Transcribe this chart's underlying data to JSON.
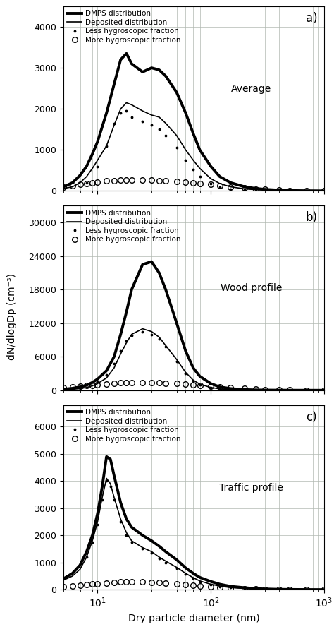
{
  "xlabel": "Dry particle diameter (nm)",
  "ylabel": "dN/dlogDp (cm⁻³)",
  "xmin": 5,
  "xmax": 1000,
  "panels": [
    {
      "label": "a)",
      "profile": "Average",
      "ymax": 4500,
      "yticks": [
        0,
        1000,
        2000,
        3000,
        4000
      ],
      "dmps": {
        "x": [
          5,
          6,
          7,
          8,
          9,
          10,
          12,
          14,
          16,
          18,
          20,
          25,
          30,
          35,
          40,
          50,
          60,
          70,
          80,
          100,
          120,
          150,
          200,
          250,
          300,
          400,
          500,
          700,
          1000
        ],
        "y": [
          100,
          200,
          380,
          600,
          900,
          1200,
          1900,
          2600,
          3200,
          3350,
          3100,
          2900,
          3000,
          2950,
          2800,
          2400,
          1900,
          1400,
          1000,
          600,
          350,
          200,
          100,
          60,
          40,
          20,
          10,
          5,
          2
        ]
      },
      "deposited": {
        "x": [
          5,
          6,
          7,
          8,
          9,
          10,
          12,
          14,
          16,
          18,
          20,
          25,
          30,
          35,
          40,
          50,
          60,
          70,
          80,
          100,
          120,
          150,
          200,
          250,
          300,
          400,
          500,
          700,
          1000
        ],
        "y": [
          60,
          100,
          200,
          350,
          550,
          750,
          1100,
          1600,
          2000,
          2150,
          2100,
          1950,
          1850,
          1800,
          1650,
          1350,
          1000,
          750,
          550,
          300,
          180,
          100,
          50,
          30,
          20,
          10,
          5,
          3,
          1
        ]
      },
      "less_hygro": {
        "x": [
          8,
          10,
          12,
          14,
          16,
          18,
          20,
          25,
          30,
          35,
          40,
          50,
          60,
          70,
          80,
          100,
          120,
          150,
          200,
          250,
          300,
          400
        ],
        "y": [
          200,
          600,
          1100,
          1650,
          1900,
          1950,
          1800,
          1700,
          1600,
          1500,
          1350,
          1050,
          750,
          520,
          350,
          180,
          90,
          50,
          25,
          12,
          8,
          3
        ]
      },
      "more_hygro": {
        "x": [
          5,
          6,
          7,
          8,
          9,
          10,
          12,
          14,
          16,
          18,
          20,
          25,
          30,
          35,
          40,
          50,
          60,
          70,
          80,
          100,
          120,
          150,
          200,
          250,
          300,
          400,
          500,
          700,
          1000
        ],
        "y": [
          100,
          130,
          160,
          180,
          200,
          220,
          240,
          250,
          260,
          270,
          270,
          270,
          260,
          250,
          240,
          230,
          220,
          200,
          180,
          160,
          130,
          100,
          70,
          50,
          35,
          20,
          12,
          6,
          3
        ]
      }
    },
    {
      "label": "b)",
      "profile": "Wood profile",
      "ymax": 33000,
      "yticks": [
        0,
        6000,
        12000,
        18000,
        24000,
        30000
      ],
      "dmps": {
        "x": [
          5,
          6,
          7,
          8,
          9,
          10,
          12,
          14,
          16,
          18,
          20,
          25,
          30,
          35,
          40,
          50,
          60,
          70,
          80,
          100,
          120,
          150,
          200,
          250,
          300,
          400,
          500,
          700,
          1000
        ],
        "y": [
          200,
          350,
          600,
          900,
          1400,
          2000,
          3500,
          6000,
          10000,
          14000,
          18000,
          22500,
          23000,
          21000,
          18000,
          12000,
          7000,
          4000,
          2500,
          1200,
          600,
          300,
          120,
          60,
          35,
          18,
          8,
          3,
          1
        ]
      },
      "deposited": {
        "x": [
          5,
          6,
          7,
          8,
          9,
          10,
          12,
          14,
          16,
          18,
          20,
          25,
          30,
          35,
          40,
          50,
          60,
          70,
          80,
          100,
          120,
          150,
          200,
          250,
          300,
          400,
          500,
          700,
          1000
        ],
        "y": [
          100,
          180,
          300,
          500,
          800,
          1200,
          2200,
          4000,
          6500,
          8500,
          10000,
          11000,
          10500,
          9500,
          8000,
          5500,
          3200,
          1800,
          1100,
          500,
          250,
          120,
          50,
          25,
          15,
          8,
          4,
          2,
          1
        ]
      },
      "less_hygro": {
        "x": [
          10,
          12,
          14,
          16,
          18,
          20,
          25,
          30,
          35,
          40,
          50,
          60,
          70,
          80,
          100,
          120,
          150,
          200,
          250
        ],
        "y": [
          1500,
          2800,
          4800,
          7000,
          8800,
          9800,
          10500,
          10000,
          9200,
          7800,
          5200,
          3000,
          1700,
          1000,
          450,
          220,
          100,
          40,
          20
        ]
      },
      "more_hygro": {
        "x": [
          5,
          6,
          7,
          8,
          9,
          10,
          12,
          14,
          16,
          18,
          20,
          25,
          30,
          35,
          40,
          50,
          60,
          70,
          80,
          100,
          120,
          150,
          200,
          250,
          300,
          400,
          500,
          700,
          1000
        ],
        "y": [
          500,
          600,
          700,
          800,
          900,
          1000,
          1100,
          1200,
          1300,
          1350,
          1400,
          1400,
          1350,
          1300,
          1250,
          1200,
          1100,
          1000,
          900,
          750,
          600,
          450,
          300,
          200,
          140,
          80,
          50,
          25,
          12
        ]
      }
    },
    {
      "label": "c)",
      "profile": "Traffic profile",
      "ymax": 6800,
      "yticks": [
        0,
        1000,
        2000,
        3000,
        4000,
        5000,
        6000
      ],
      "dmps": {
        "x": [
          5,
          6,
          7,
          8,
          9,
          10,
          11,
          12,
          13,
          14,
          16,
          18,
          20,
          25,
          30,
          35,
          40,
          50,
          60,
          70,
          80,
          100,
          120,
          150,
          200,
          250,
          300,
          400,
          500,
          700,
          1000
        ],
        "y": [
          400,
          600,
          900,
          1400,
          2000,
          2800,
          3800,
          4900,
          4800,
          4200,
          3200,
          2600,
          2300,
          2000,
          1800,
          1600,
          1400,
          1100,
          800,
          600,
          450,
          300,
          200,
          120,
          70,
          40,
          25,
          12,
          7,
          3,
          1
        ]
      },
      "deposited": {
        "x": [
          5,
          6,
          7,
          8,
          9,
          10,
          11,
          12,
          13,
          14,
          16,
          18,
          20,
          25,
          30,
          35,
          40,
          50,
          60,
          70,
          80,
          100,
          120,
          150,
          200,
          250,
          300,
          400,
          500,
          700,
          1000
        ],
        "y": [
          350,
          500,
          750,
          1200,
          1800,
          2500,
          3400,
          4100,
          3900,
          3400,
          2600,
          2100,
          1800,
          1550,
          1400,
          1200,
          1050,
          820,
          600,
          440,
          320,
          200,
          130,
          75,
          42,
          24,
          15,
          7,
          4,
          2,
          1
        ]
      },
      "less_hygro": {
        "x": [
          8,
          9,
          10,
          11,
          12,
          13,
          14,
          16,
          18,
          20,
          25,
          30,
          35,
          40,
          50,
          60,
          70,
          80,
          100,
          120,
          150,
          200,
          250,
          300
        ],
        "y": [
          1200,
          1750,
          2400,
          3300,
          4000,
          3800,
          3300,
          2500,
          2000,
          1750,
          1500,
          1350,
          1150,
          1000,
          780,
          570,
          420,
          300,
          190,
          120,
          70,
          38,
          20,
          12
        ]
      },
      "more_hygro": {
        "x": [
          5,
          6,
          7,
          8,
          9,
          10,
          12,
          14,
          16,
          18,
          20,
          25,
          30,
          35,
          40,
          50,
          60,
          70,
          80,
          100,
          120,
          150,
          200,
          250,
          300,
          400,
          500,
          700,
          1000
        ],
        "y": [
          100,
          130,
          160,
          180,
          200,
          220,
          250,
          270,
          280,
          285,
          285,
          280,
          270,
          255,
          240,
          210,
          180,
          155,
          130,
          100,
          75,
          55,
          35,
          22,
          14,
          8,
          5,
          3,
          1
        ]
      }
    }
  ]
}
